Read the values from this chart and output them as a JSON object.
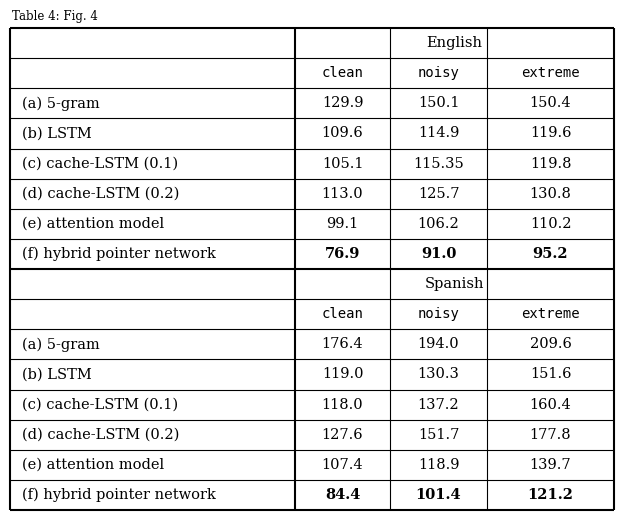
{
  "title_text": "Table 4: Fig. 4",
  "english_header": "English",
  "spanish_header": "Spanish",
  "sub_headers": [
    "clean",
    "noisy",
    "extreme"
  ],
  "row_labels": [
    "(a) 5-gram",
    "(b) LSTM",
    "(c) cache-LSTM (0.1)",
    "(d) cache-LSTM (0.2)",
    "(e) attention model",
    "(f) hybrid pointer network"
  ],
  "english_data": [
    [
      "129.9",
      "150.1",
      "150.4"
    ],
    [
      "109.6",
      "114.9",
      "119.6"
    ],
    [
      "105.1",
      "115.35",
      "119.8"
    ],
    [
      "113.0",
      "125.7",
      "130.8"
    ],
    [
      "99.1",
      "106.2",
      "110.2"
    ],
    [
      "76.9",
      "91.0",
      "95.2"
    ]
  ],
  "spanish_data": [
    [
      "176.4",
      "194.0",
      "209.6"
    ],
    [
      "119.0",
      "130.3",
      "151.6"
    ],
    [
      "118.0",
      "137.2",
      "160.4"
    ],
    [
      "127.6",
      "151.7",
      "177.8"
    ],
    [
      "107.4",
      "118.9",
      "139.7"
    ],
    [
      "84.4",
      "101.4",
      "121.2"
    ]
  ],
  "bold_rows": [
    5
  ],
  "bg_color": "#ffffff",
  "text_color": "#000000",
  "line_color": "#000000",
  "font_size": 10.5,
  "mono_font_size": 10.0,
  "monospace_font": "DejaVu Sans Mono",
  "serif_font": "DejaVu Serif"
}
